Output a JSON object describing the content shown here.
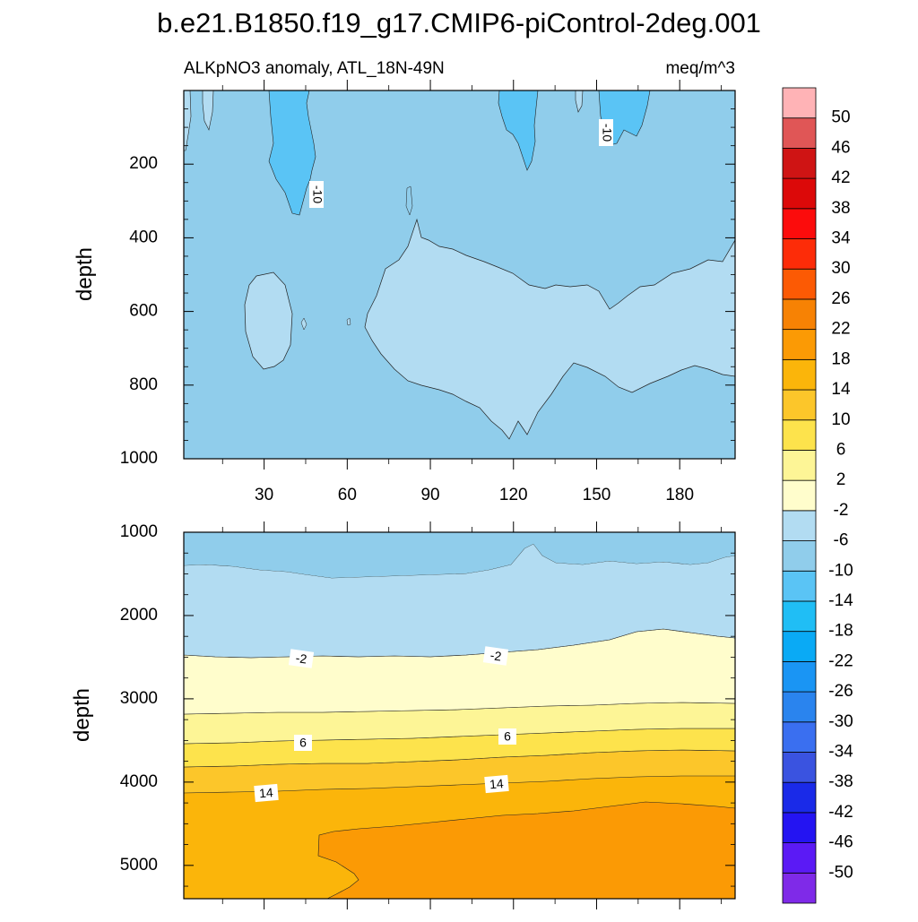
{
  "chart_data": {
    "type": "contour",
    "title": "b.e21.B1850.f19_g17.CMIP6-piControl-2deg.001",
    "subtitle_left": "ALKpNO3 anomaly, ATL_18N-49N",
    "subtitle_right": "meq/m^3",
    "x_range": [
      1,
      200
    ],
    "x_ticks": [
      30,
      60,
      90,
      120,
      150,
      180
    ],
    "colorbar": {
      "levels": [
        -50,
        -46,
        -42,
        -38,
        -34,
        -30,
        -26,
        -22,
        -18,
        -14,
        -10,
        -6,
        -2,
        2,
        6,
        10,
        14,
        18,
        22,
        26,
        30,
        34,
        38,
        42,
        46,
        50
      ],
      "labels": [
        "50",
        "46",
        "42",
        "38",
        "34",
        "30",
        "26",
        "22",
        "18",
        "14",
        "10",
        "6",
        "2",
        "-2",
        "-6",
        "-10",
        "-14",
        "-18",
        "-22",
        "-26",
        "-30",
        "-34",
        "-38",
        "-42",
        "-46",
        "-50"
      ],
      "colors": [
        "#7f2ae8",
        "#5b1af5",
        "#2414f2",
        "#1a2ae8",
        "#3a53e0",
        "#3a6ff0",
        "#2a84ee",
        "#1a95f4",
        "#0aaaf5",
        "#20bef5",
        "#5ac4f5",
        "#90cdeb",
        "#b2dcf2",
        "#fffdcc",
        "#fdf596",
        "#fde34c",
        "#fcc62a",
        "#fbb50a",
        "#fb9a05",
        "#f78204",
        "#fc5a04",
        "#fd2c08",
        "#fc0c0c",
        "#dc0909",
        "#cf1414",
        "#e05656",
        "#ffb3b6"
      ]
    },
    "panels": [
      {
        "name": "upper",
        "ylabel": "depth",
        "y_range": [
          0,
          1000
        ],
        "y_ticks": [
          200,
          400,
          600,
          800,
          1000
        ],
        "contour_labels": [
          "-10",
          "-10"
        ]
      },
      {
        "name": "lower",
        "ylabel": "depth",
        "y_range": [
          1000,
          5400
        ],
        "y_ticks": [
          1000,
          2000,
          3000,
          4000,
          5000
        ],
        "contour_labels": [
          "-2",
          "-2",
          "6",
          "6",
          "14",
          "14"
        ]
      }
    ]
  }
}
